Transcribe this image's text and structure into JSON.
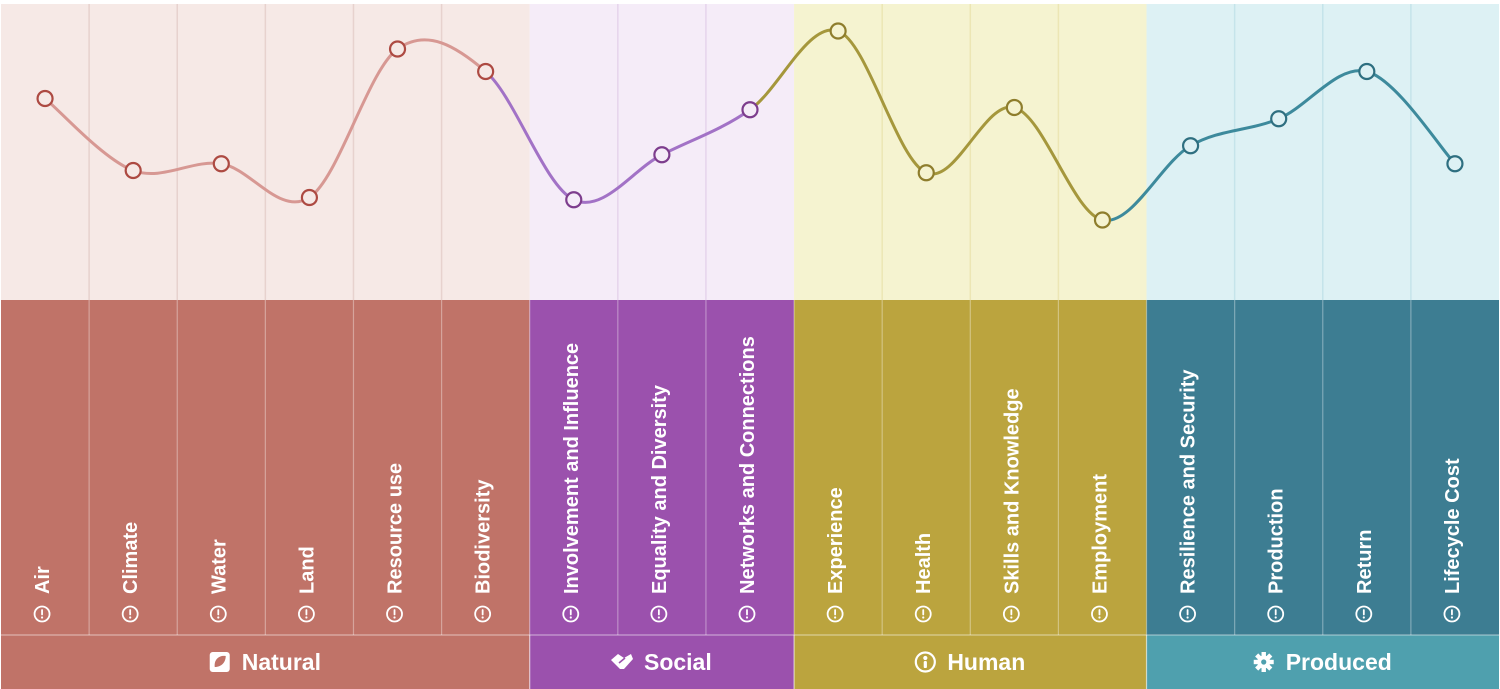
{
  "chart_data": {
    "type": "line",
    "ylim": [
      0,
      100
    ],
    "grid": true,
    "categories": [
      "Air",
      "Climate",
      "Water",
      "Land",
      "Resource use",
      "Biodiversity",
      "Involvement and Influence",
      "Equality and Diversity",
      "Networks and Connections",
      "Experience",
      "Health",
      "Skills and Knowledge",
      "Employment",
      "Resilience and Security",
      "Production",
      "Return",
      "Lifecycle Cost"
    ],
    "values": [
      70,
      38,
      41,
      26,
      92,
      82,
      25,
      45,
      65,
      100,
      37,
      66,
      16,
      49,
      61,
      82,
      41
    ],
    "groups": [
      {
        "name": "Natural",
        "icon": "leaf-icon",
        "start": 0,
        "count": 6,
        "bg": "#f6e9e6",
        "band": "#c07368",
        "footer": "#c07368",
        "line": "#d79893",
        "marker": "#ad4a42",
        "divider": "#e7d2ce"
      },
      {
        "name": "Social",
        "icon": "handshake-icon",
        "start": 6,
        "count": 3,
        "bg": "#f5ecf8",
        "band": "#9b51ad",
        "footer": "#9b51ad",
        "line": "#a272c6",
        "marker": "#7d3d8d",
        "divider": "#e6d4ec"
      },
      {
        "name": "Human",
        "icon": "person-icon",
        "start": 9,
        "count": 4,
        "bg": "#f5f3d0",
        "band": "#bba43e",
        "footer": "#bba43e",
        "line": "#a5973c",
        "marker": "#8e7d2c",
        "divider": "#ece6b4"
      },
      {
        "name": "Produced",
        "icon": "gear-icon",
        "start": 13,
        "count": 4,
        "bg": "#ddf1f4",
        "band": "#3d7d92",
        "footer": "#4fa0ae",
        "line": "#3d8a9c",
        "marker": "#2e6f80",
        "divider": "#c5e4ea"
      }
    ]
  }
}
